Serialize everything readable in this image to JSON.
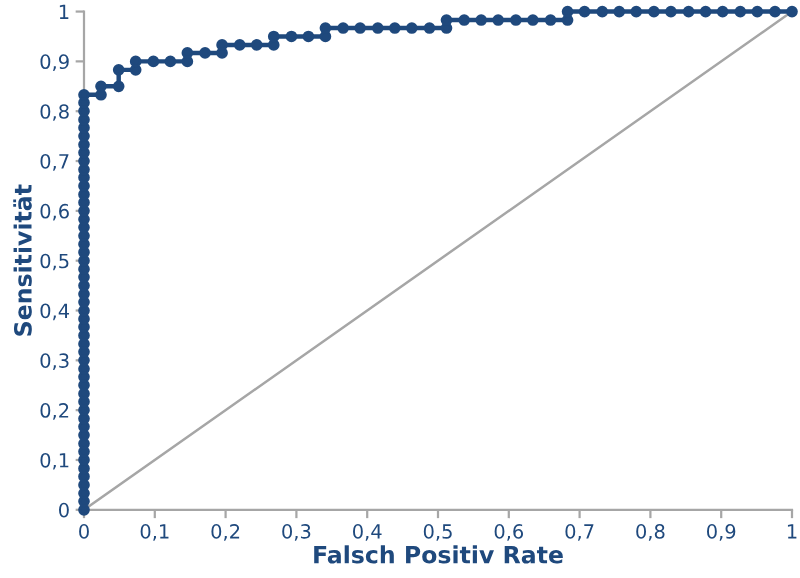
{
  "chart_data": {
    "type": "line",
    "xlabel": "Falsch Positiv Rate",
    "ylabel": "Sensitivität",
    "grid": false,
    "legend": false,
    "xlim": [
      0,
      1
    ],
    "ylim": [
      0,
      1
    ],
    "xticks": [
      0,
      {
        "value": 0.1,
        "label": "0,1"
      },
      {
        "value": 0.2,
        "label": "0,2"
      },
      {
        "value": 0.3,
        "label": "0,3"
      },
      {
        "value": 0.4,
        "label": "0,4"
      },
      {
        "value": 0.5,
        "label": "0,5"
      },
      {
        "value": 0.6,
        "label": "0,6"
      },
      {
        "value": 0.7,
        "label": "0,7"
      },
      {
        "value": 0.8,
        "label": "0,8"
      },
      {
        "value": 0.9,
        "label": "0,9"
      },
      1
    ],
    "yticks": [
      0,
      {
        "value": 0.1,
        "label": "0,1"
      },
      {
        "value": 0.2,
        "label": "0,2"
      },
      {
        "value": 0.3,
        "label": "0,3"
      },
      {
        "value": 0.4,
        "label": "0,4"
      },
      {
        "value": 0.5,
        "label": "0,5"
      },
      {
        "value": 0.6,
        "label": "0,6"
      },
      {
        "value": 0.7,
        "label": "0,7"
      },
      {
        "value": 0.8,
        "label": "0,8"
      },
      {
        "value": 0.9,
        "label": "0,9"
      },
      1
    ],
    "series": [
      {
        "color": "#a6a6a6",
        "marker": "none",
        "x": [
          0,
          1
        ],
        "values": [
          0,
          1
        ]
      },
      {
        "color": "#1f497d",
        "marker": "circle",
        "x": [
          0,
          0,
          0,
          0,
          0,
          0,
          0,
          0,
          0,
          0,
          0,
          0,
          0,
          0,
          0,
          0,
          0,
          0,
          0,
          0,
          0,
          0,
          0,
          0,
          0,
          0,
          0,
          0,
          0,
          0,
          0,
          0,
          0,
          0,
          0,
          0,
          0,
          0,
          0,
          0,
          0,
          0,
          0,
          0,
          0,
          0,
          0,
          0,
          0,
          0,
          0,
          0.024,
          0.024,
          0.049,
          0.049,
          0.073,
          0.073,
          0.098,
          0.122,
          0.146,
          0.146,
          0.171,
          0.195,
          0.195,
          0.22,
          0.244,
          0.268,
          0.268,
          0.293,
          0.317,
          0.341,
          0.341,
          0.366,
          0.39,
          0.415,
          0.439,
          0.463,
          0.488,
          0.512,
          0.512,
          0.537,
          0.561,
          0.585,
          0.61,
          0.634,
          0.659,
          0.683,
          0.683,
          0.707,
          0.732,
          0.756,
          0.78,
          0.805,
          0.829,
          0.854,
          0.878,
          0.902,
          0.927,
          0.951,
          0.976,
          1
        ],
        "values": [
          0,
          0.017,
          0.033,
          0.05,
          0.067,
          0.083,
          0.1,
          0.117,
          0.133,
          0.15,
          0.167,
          0.183,
          0.2,
          0.217,
          0.233,
          0.25,
          0.267,
          0.283,
          0.3,
          0.317,
          0.333,
          0.35,
          0.367,
          0.383,
          0.4,
          0.417,
          0.433,
          0.45,
          0.467,
          0.483,
          0.5,
          0.517,
          0.533,
          0.55,
          0.567,
          0.583,
          0.6,
          0.617,
          0.633,
          0.65,
          0.667,
          0.683,
          0.7,
          0.717,
          0.733,
          0.75,
          0.767,
          0.783,
          0.8,
          0.817,
          0.833,
          0.833,
          0.85,
          0.85,
          0.883,
          0.883,
          0.9,
          0.9,
          0.9,
          0.9,
          0.917,
          0.917,
          0.917,
          0.933,
          0.933,
          0.933,
          0.933,
          0.95,
          0.95,
          0.95,
          0.95,
          0.967,
          0.967,
          0.967,
          0.967,
          0.967,
          0.967,
          0.967,
          0.967,
          0.983,
          0.983,
          0.983,
          0.983,
          0.983,
          0.983,
          0.983,
          0.983,
          1,
          1,
          1,
          1,
          1,
          1,
          1,
          1,
          1,
          1,
          1,
          1,
          1,
          1
        ]
      }
    ]
  }
}
